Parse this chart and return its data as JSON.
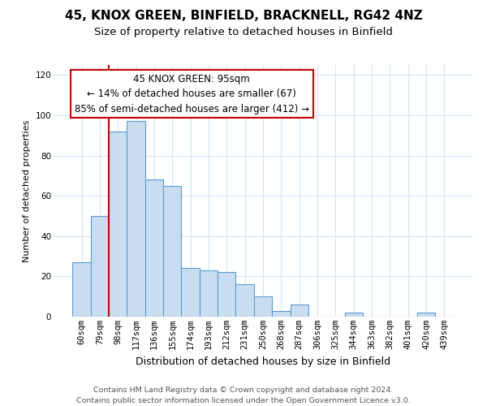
{
  "title": "45, KNOX GREEN, BINFIELD, BRACKNELL, RG42 4NZ",
  "subtitle": "Size of property relative to detached houses in Binfield",
  "xlabel": "Distribution of detached houses by size in Binfield",
  "ylabel": "Number of detached properties",
  "bar_labels": [
    "60sqm",
    "79sqm",
    "98sqm",
    "117sqm",
    "136sqm",
    "155sqm",
    "174sqm",
    "193sqm",
    "212sqm",
    "231sqm",
    "250sqm",
    "268sqm",
    "287sqm",
    "306sqm",
    "325sqm",
    "344sqm",
    "363sqm",
    "382sqm",
    "401sqm",
    "420sqm",
    "439sqm"
  ],
  "bar_values": [
    27,
    50,
    92,
    97,
    68,
    65,
    24,
    23,
    22,
    16,
    10,
    3,
    6,
    0,
    0,
    2,
    0,
    0,
    0,
    2,
    0
  ],
  "bar_color": "#c9ddf0",
  "bar_edge_color": "#5b9bd5",
  "vline_color": "#cc0000",
  "annotation_text_line1": "45 KNOX GREEN: 95sqm",
  "annotation_text_line2": "← 14% of detached houses are smaller (67)",
  "annotation_text_line3": "85% of semi-detached houses are larger (412) →",
  "ylim": [
    0,
    125
  ],
  "yticks": [
    0,
    20,
    40,
    60,
    80,
    100,
    120
  ],
  "footnote": "Contains HM Land Registry data © Crown copyright and database right 2024.\nContains public sector information licensed under the Open Government Licence v3.0.",
  "background_color": "#ffffff",
  "grid_color": "#d4e6f5",
  "title_fontsize": 11,
  "subtitle_fontsize": 9.5,
  "xlabel_fontsize": 9,
  "ylabel_fontsize": 8,
  "tick_fontsize": 7.5,
  "annotation_fontsize": 8.5,
  "footnote_fontsize": 6.8
}
